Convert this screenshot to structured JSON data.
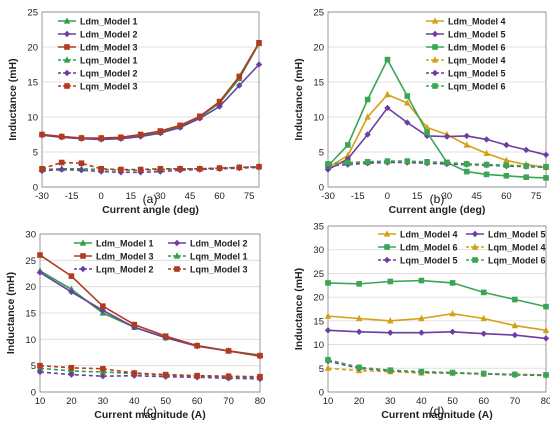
{
  "chart_data": [
    {
      "id": "a",
      "type": "line",
      "caption": "(a)",
      "xlabel": "Current angle (deg)",
      "ylabel": "Inductance (mH)",
      "xlim": [
        -30,
        80
      ],
      "ylim": [
        0,
        25
      ],
      "xticks": [
        -30,
        -15,
        0,
        15,
        30,
        45,
        60,
        75
      ],
      "yticks": [
        0,
        5,
        10,
        15,
        20,
        25
      ],
      "grid": true,
      "legend": "top-left",
      "x": [
        -30,
        -20,
        -10,
        0,
        10,
        20,
        30,
        40,
        50,
        60,
        70,
        80
      ],
      "series": [
        {
          "name": "Ldm_Model 1",
          "color": "#2e9e4a",
          "dash": false,
          "marker": "triangle",
          "values": [
            7.5,
            7.2,
            7.0,
            6.9,
            7.0,
            7.4,
            7.8,
            8.6,
            10.0,
            12.0,
            15.5,
            20.5
          ]
        },
        {
          "name": "Ldm_Model 2",
          "color": "#6b3fa0",
          "dash": false,
          "marker": "diamond",
          "values": [
            7.4,
            7.1,
            6.9,
            6.8,
            6.9,
            7.2,
            7.7,
            8.5,
            9.8,
            11.5,
            14.5,
            17.5
          ]
        },
        {
          "name": "Ldm_Model 3",
          "color": "#b23a1e",
          "dash": false,
          "marker": "square",
          "values": [
            7.5,
            7.2,
            7.0,
            7.0,
            7.1,
            7.5,
            8.0,
            8.8,
            10.1,
            12.2,
            15.8,
            20.6
          ]
        },
        {
          "name": "Lqm_Model 1",
          "color": "#2e9e4a",
          "dash": true,
          "marker": "triangle",
          "values": [
            2.5,
            2.6,
            2.6,
            2.5,
            2.4,
            2.4,
            2.5,
            2.6,
            2.6,
            2.7,
            2.8,
            2.9
          ]
        },
        {
          "name": "Lqm_Model 2",
          "color": "#6b3fa0",
          "dash": true,
          "marker": "diamond",
          "values": [
            2.3,
            2.5,
            2.4,
            2.2,
            2.1,
            2.1,
            2.2,
            2.4,
            2.5,
            2.6,
            2.7,
            2.8
          ]
        },
        {
          "name": "Lqm_Model 3",
          "color": "#b23a1e",
          "dash": true,
          "marker": "square",
          "values": [
            2.6,
            3.5,
            3.4,
            2.6,
            2.5,
            2.5,
            2.6,
            2.6,
            2.6,
            2.7,
            2.8,
            2.9
          ]
        }
      ]
    },
    {
      "id": "b",
      "type": "line",
      "caption": "(b)",
      "xlabel": "Current angle (deg)",
      "ylabel": "Inductance (mH)",
      "xlim": [
        -30,
        80
      ],
      "ylim": [
        0,
        25
      ],
      "xticks": [
        -30,
        -15,
        0,
        15,
        30,
        45,
        60,
        75
      ],
      "yticks": [
        0,
        5,
        10,
        15,
        20,
        25
      ],
      "grid": true,
      "legend": "top-right",
      "x": [
        -30,
        -20,
        -10,
        0,
        10,
        20,
        30,
        40,
        50,
        60,
        70,
        80
      ],
      "series": [
        {
          "name": "Ldm_Model 4",
          "color": "#d4a017",
          "dash": false,
          "marker": "triangle",
          "values": [
            2.8,
            4.5,
            10.0,
            13.2,
            12.0,
            8.5,
            7.5,
            6.0,
            4.8,
            3.8,
            3.2,
            2.8
          ]
        },
        {
          "name": "Ldm_Model 5",
          "color": "#6b3fa0",
          "dash": false,
          "marker": "diamond",
          "values": [
            2.5,
            4.0,
            7.5,
            11.3,
            9.2,
            7.3,
            7.2,
            7.3,
            6.8,
            6.0,
            5.3,
            4.6
          ]
        },
        {
          "name": "Ldm_Model 6",
          "color": "#3aa655",
          "dash": false,
          "marker": "square",
          "values": [
            3.0,
            6.0,
            12.5,
            18.2,
            13.0,
            7.8,
            3.5,
            2.2,
            1.8,
            1.6,
            1.4,
            1.3
          ]
        },
        {
          "name": "Lqm_Model 4",
          "color": "#d4a017",
          "dash": true,
          "marker": "triangle",
          "values": [
            3.2,
            3.4,
            3.5,
            3.6,
            3.6,
            3.5,
            3.4,
            3.3,
            3.2,
            3.1,
            3.0,
            2.9
          ]
        },
        {
          "name": "Lqm_Model 5",
          "color": "#6b3fa0",
          "dash": true,
          "marker": "diamond",
          "values": [
            3.0,
            3.2,
            3.4,
            3.5,
            3.5,
            3.4,
            3.3,
            3.2,
            3.1,
            3.0,
            2.9,
            2.8
          ]
        },
        {
          "name": "Lqm_Model 6",
          "color": "#3aa655",
          "dash": true,
          "marker": "square",
          "values": [
            3.3,
            3.5,
            3.6,
            3.7,
            3.7,
            3.6,
            3.5,
            3.3,
            3.2,
            3.1,
            3.0,
            2.9
          ]
        }
      ]
    },
    {
      "id": "c",
      "type": "line",
      "caption": "(c)",
      "xlabel": "Current magnitude (A)",
      "ylabel": "Inductance (mH)",
      "xlim": [
        10,
        80
      ],
      "ylim": [
        0,
        30
      ],
      "xticks": [
        10,
        20,
        30,
        40,
        50,
        60,
        70,
        80
      ],
      "yticks": [
        0,
        5,
        10,
        15,
        20,
        25,
        30
      ],
      "grid": true,
      "legend": "top-right",
      "x": [
        10,
        20,
        30,
        40,
        50,
        60,
        70,
        80
      ],
      "series": [
        {
          "name": "Ldm_Model 1",
          "color": "#2e9e4a",
          "dash": false,
          "marker": "triangle",
          "values": [
            23.0,
            19.5,
            15.0,
            12.3,
            10.3,
            8.8,
            7.8,
            7.0
          ]
        },
        {
          "name": "Ldm_Model 2",
          "color": "#6b3fa0",
          "dash": false,
          "marker": "diamond",
          "values": [
            22.7,
            19.0,
            15.5,
            12.3,
            10.3,
            8.7,
            7.8,
            6.8
          ]
        },
        {
          "name": "Ldm_Model 3",
          "color": "#b23a1e",
          "dash": false,
          "marker": "square",
          "values": [
            26.0,
            22.0,
            16.3,
            12.8,
            10.6,
            8.8,
            7.8,
            6.9
          ]
        },
        {
          "name": "Lqm_Model 1",
          "color": "#2e9e4a",
          "dash": true,
          "marker": "triangle",
          "values": [
            4.5,
            4.0,
            3.8,
            3.5,
            3.2,
            3.0,
            2.8,
            2.7
          ]
        },
        {
          "name": "Lqm_Model 2",
          "color": "#6b3fa0",
          "dash": true,
          "marker": "diamond",
          "values": [
            3.8,
            3.3,
            3.0,
            3.1,
            2.9,
            2.8,
            2.6,
            2.5
          ]
        },
        {
          "name": "Lqm_Model 3",
          "color": "#b23a1e",
          "dash": true,
          "marker": "square",
          "values": [
            5.0,
            4.6,
            4.4,
            3.6,
            3.3,
            3.1,
            3.0,
            2.9
          ]
        }
      ]
    },
    {
      "id": "d",
      "type": "line",
      "caption": "(d)",
      "xlabel": "Current magnitude (A)",
      "ylabel": "Inductance (mH)",
      "xlim": [
        10,
        80
      ],
      "ylim": [
        0,
        35
      ],
      "xticks": [
        10,
        20,
        30,
        40,
        50,
        60,
        70,
        80
      ],
      "yticks": [
        0,
        5,
        10,
        15,
        20,
        25,
        30,
        35
      ],
      "grid": true,
      "legend": "top-right",
      "x": [
        10,
        20,
        30,
        40,
        50,
        60,
        70,
        80
      ],
      "series": [
        {
          "name": "Ldm_Model 4",
          "color": "#d4a017",
          "dash": false,
          "marker": "triangle",
          "values": [
            16.0,
            15.5,
            15.0,
            15.5,
            16.5,
            15.5,
            14.0,
            13.0
          ]
        },
        {
          "name": "Ldm_Model 5",
          "color": "#6b3fa0",
          "dash": false,
          "marker": "diamond",
          "values": [
            13.0,
            12.7,
            12.5,
            12.5,
            12.7,
            12.3,
            12.0,
            11.3
          ]
        },
        {
          "name": "Ldm_Model 6",
          "color": "#3aa655",
          "dash": false,
          "marker": "square",
          "values": [
            23.0,
            22.8,
            23.3,
            23.5,
            23.0,
            21.0,
            19.5,
            18.0
          ]
        },
        {
          "name": "Lqm_Model 4",
          "color": "#d4a017",
          "dash": true,
          "marker": "triangle",
          "values": [
            5.0,
            4.5,
            4.3,
            4.0,
            4.0,
            3.8,
            3.7,
            3.6
          ]
        },
        {
          "name": "Lqm_Model 5",
          "color": "#6b3fa0",
          "dash": true,
          "marker": "diamond",
          "values": [
            6.5,
            5.0,
            4.5,
            4.2,
            4.0,
            3.8,
            3.6,
            3.5
          ]
        },
        {
          "name": "Lqm_Model 6",
          "color": "#3aa655",
          "dash": true,
          "marker": "square",
          "values": [
            6.8,
            5.2,
            4.6,
            4.3,
            4.1,
            3.9,
            3.7,
            3.6
          ]
        }
      ]
    }
  ]
}
